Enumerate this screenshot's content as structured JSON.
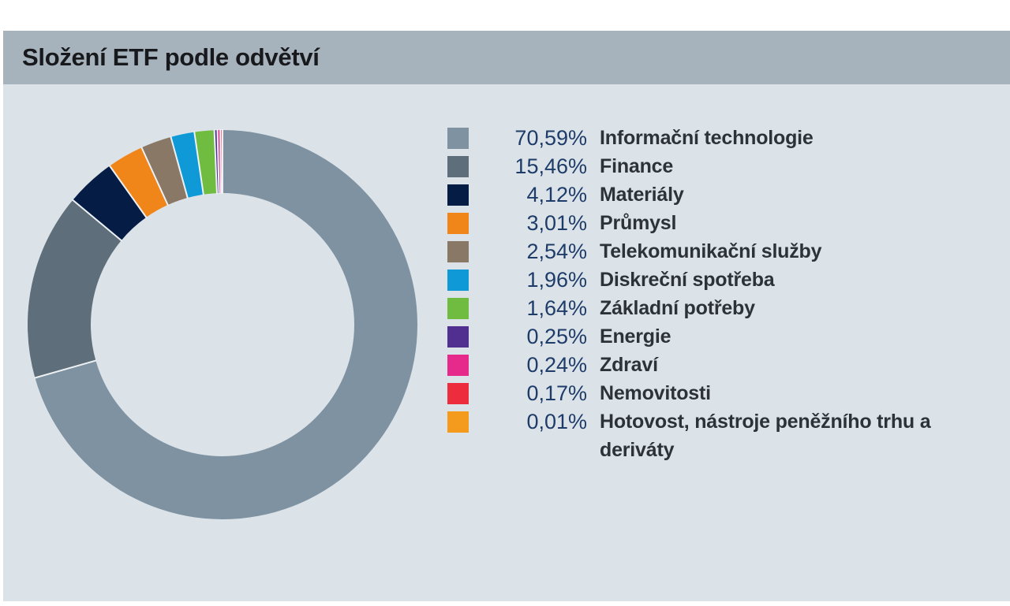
{
  "header": {
    "title": "Složení ETF podle odvětví"
  },
  "colors": {
    "title_bar_bg": "#a6b2bc",
    "content_bg": "#dce3e8",
    "page_bg": "#ffffff",
    "percent_text": "#1e3c69",
    "label_text": "#2c3237",
    "title_text": "#17191c",
    "slice_separator": "#edf1f3"
  },
  "chart_data": {
    "type": "pie",
    "subtype": "donut",
    "title": "Složení ETF podle odvětví",
    "unit": "%",
    "decimal_separator": ",",
    "start_angle_deg": 0,
    "direction": "clockwise",
    "inner_radius_ratio": 0.676,
    "legend_position": "right",
    "slices": [
      {
        "label": "Informační technologie",
        "value": 70.59,
        "display": "70,59%",
        "color": "#7e92a2"
      },
      {
        "label": "Finance",
        "value": 15.46,
        "display": "15,46%",
        "color": "#5e6e7a"
      },
      {
        "label": "Materiály",
        "value": 4.12,
        "display": "4,12%",
        "color": "#051c44"
      },
      {
        "label": "Průmysl",
        "value": 3.01,
        "display": "3,01%",
        "color": "#f0861a"
      },
      {
        "label": "Telekomunikační služby",
        "value": 2.54,
        "display": "2,54%",
        "color": "#8a7867"
      },
      {
        "label": "Diskreční spotřeba",
        "value": 1.96,
        "display": "1,96%",
        "color": "#0f9ad7"
      },
      {
        "label": "Základní potřeby",
        "value": 1.64,
        "display": "1,64%",
        "color": "#6fbc40"
      },
      {
        "label": "Energie",
        "value": 0.25,
        "display": "0,25%",
        "color": "#512f90"
      },
      {
        "label": "Zdraví",
        "value": 0.24,
        "display": "0,24%",
        "color": "#e62a8b"
      },
      {
        "label": "Nemovitosti",
        "value": 0.17,
        "display": "0,17%",
        "color": "#ed2c3d"
      },
      {
        "label": "Hotovost, nástroje peněžního trhu a deriváty",
        "value": 0.01,
        "display": "0,01%",
        "color": "#f49b1e"
      }
    ]
  }
}
